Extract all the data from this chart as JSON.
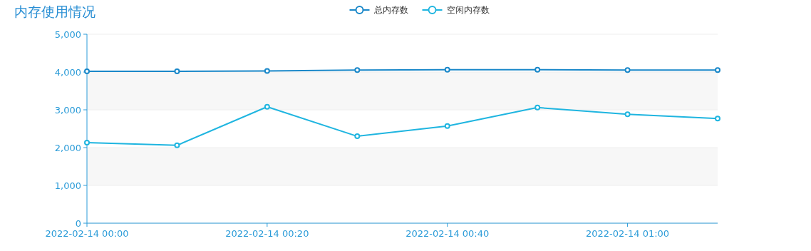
{
  "chart_data": {
    "type": "line",
    "title": "内存使用情况",
    "legend": "top",
    "grid": "y",
    "marker": "circle",
    "line_style": "solid",
    "x": [
      "2022-02-14T00:00",
      "2022-02-14T00:10",
      "2022-02-14T00:20",
      "2022-02-14T00:30",
      "2022-02-14T00:40",
      "2022-02-14T00:50",
      "2022-02-14T01:00",
      "2022-02-14T01:10"
    ],
    "xlim": [
      "2022-02-14T00:00",
      "2022-02-14T01:10"
    ],
    "xticks": [
      {
        "value": "2022-02-14T00:00",
        "label": "2022-02-14 00:00"
      },
      {
        "value": "2022-02-14T00:20",
        "label": "2022-02-14 00:20"
      },
      {
        "value": "2022-02-14T00:40",
        "label": "2022-02-14 00:40"
      },
      {
        "value": "2022-02-14T01:00",
        "label": "2022-02-14 01:00"
      }
    ],
    "ylim": [
      0,
      5000
    ],
    "yticks": [
      {
        "value": 0,
        "label": "0"
      },
      {
        "value": 1000,
        "label": "1,000"
      },
      {
        "value": 2000,
        "label": "2,000"
      },
      {
        "value": 3000,
        "label": "3,000"
      },
      {
        "value": 4000,
        "label": "4,000"
      },
      {
        "value": 5000,
        "label": "5,000"
      }
    ],
    "bands": [
      {
        "axis": "y",
        "from": 1000,
        "to": 2000,
        "color": "#f7f7f7"
      },
      {
        "axis": "y",
        "from": 3000,
        "to": 4000,
        "color": "#f7f7f7"
      }
    ],
    "series": [
      {
        "name": "总内存数",
        "color": "#1a88c9",
        "values": [
          4020,
          4020,
          4030,
          4050,
          4060,
          4060,
          4050,
          4050
        ]
      },
      {
        "name": "空闲内存数",
        "color": "#1fb5e0",
        "values": [
          2130,
          2060,
          3080,
          2300,
          2570,
          3060,
          2880,
          2770
        ]
      }
    ]
  }
}
